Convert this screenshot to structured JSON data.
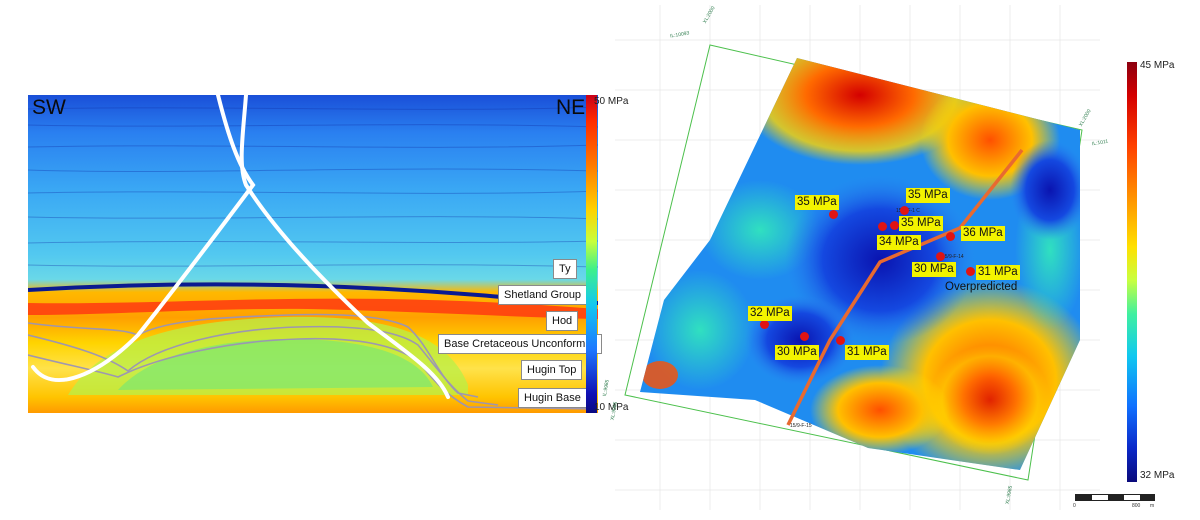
{
  "seismic_section": {
    "direction_left": "SW",
    "direction_right": "NE",
    "horizons": [
      {
        "label": "Ty"
      },
      {
        "label": "Shetland Group"
      },
      {
        "label": "Hod"
      },
      {
        "label": "Base Cretaceous Unconformity"
      },
      {
        "label": "Hugin Top"
      },
      {
        "label": "Hugin Base"
      }
    ],
    "colorbar": {
      "max_label": "50 MPa",
      "min_label": "10 MPa"
    }
  },
  "pressure_map": {
    "colorbar": {
      "max_label": "45 MPa",
      "min_label": "32 MPa"
    },
    "pressure_labels": [
      {
        "text": "35 MPa"
      },
      {
        "text": "35 MPa"
      },
      {
        "text": "35 MPa"
      },
      {
        "text": "34 MPa"
      },
      {
        "text": "36 MPa"
      },
      {
        "text": "30 MPa"
      },
      {
        "text": "31 MPa"
      },
      {
        "text": "32 MPa"
      },
      {
        "text": "30 MPa"
      },
      {
        "text": "31 MPa"
      }
    ],
    "annotation": "Overpredicted",
    "well_names": [
      "15/9-F-1 C",
      "15/9-F-14",
      "15/9-F-15"
    ],
    "edge_labels": [
      "IL:10093",
      "XL:2000",
      "XL:2000",
      "IL:1011",
      "IL:9985",
      "XL:9985",
      "XL:9985"
    ],
    "scale_bar": {
      "start": "0",
      "end": "800",
      "unit": "m"
    }
  }
}
